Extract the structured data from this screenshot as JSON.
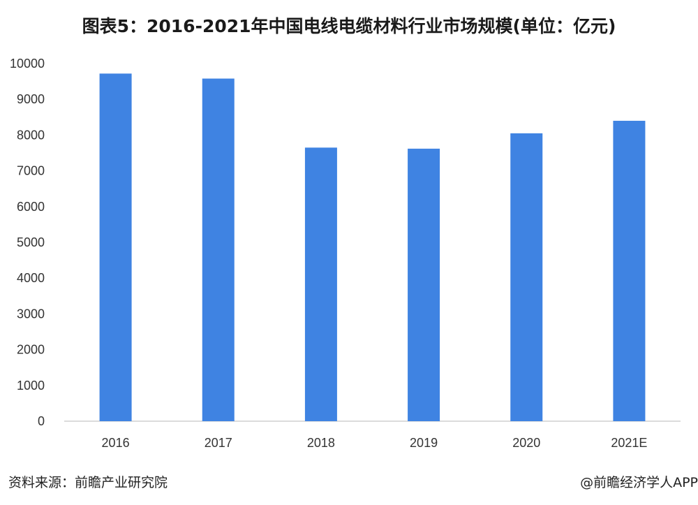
{
  "title": "图表5：2016-2021年中国电线电缆材料行业市场规模(单位：亿元)",
  "source_label": "资料来源：前瞻产业研究院",
  "credit": "@前瞻经济学人APP",
  "colors": {
    "bar": "#3f83e2",
    "axis": "#cfcfcf",
    "text": "#333333"
  },
  "chart_data": {
    "type": "bar",
    "title": "图表5：2016-2021年中国电线电缆材料行业市场规模(单位：亿元)",
    "categories": [
      "2016",
      "2017",
      "2018",
      "2019",
      "2020",
      "2021E"
    ],
    "series": [
      {
        "values": [
          9720,
          9580,
          7650,
          7620,
          8050,
          8400
        ]
      }
    ],
    "ylim": [
      0,
      10000
    ],
    "yticks": [
      "0",
      "1000",
      "2000",
      "3000",
      "4000",
      "5000",
      "6000",
      "7000",
      "8000",
      "9000",
      "10000"
    ],
    "xlabel": "",
    "ylabel": "",
    "grid": false,
    "legend": "none"
  }
}
